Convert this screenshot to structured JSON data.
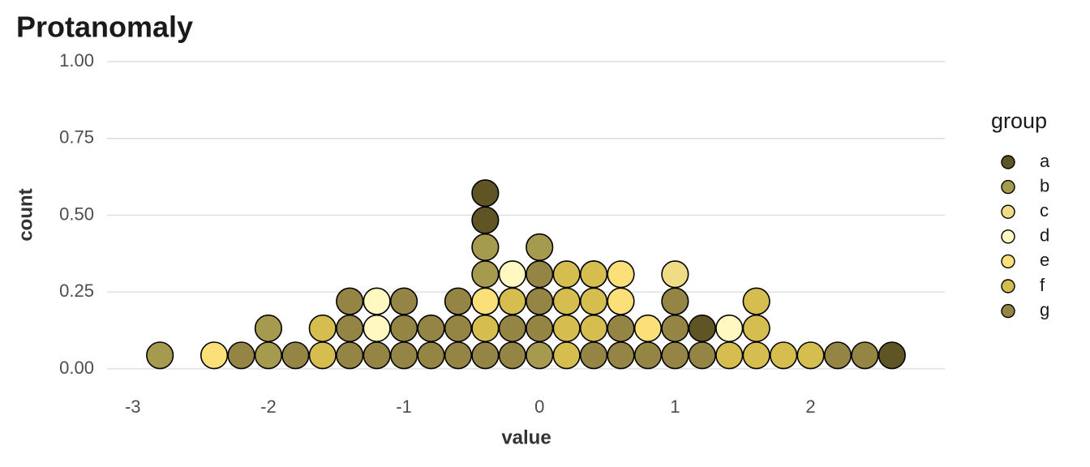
{
  "chart_data": {
    "type": "dotplot",
    "title": "Protanomaly",
    "x_label": "value",
    "y_label": "count",
    "legend_title": "group",
    "xlim": [
      -3.19,
      2.99
    ],
    "ylim": [
      -0.07,
      1.0
    ],
    "xticks": [
      -3,
      -2,
      -1,
      0,
      1,
      2
    ],
    "yticks": [
      {
        "value": 0,
        "label": "0.00"
      },
      {
        "value": 0.25,
        "label": "0.25"
      },
      {
        "value": 0.5,
        "label": "0.50"
      },
      {
        "value": 0.75,
        "label": "0.75"
      },
      {
        "value": 1,
        "label": "1.00"
      }
    ],
    "grid": true,
    "legend": "right",
    "series": [
      {
        "name": "a",
        "color": "#5f5423",
        "x": [
          -0.4,
          -0.4,
          1.2,
          2.6
        ],
        "values": [
          0.484,
          0.572,
          0.132,
          0.044
        ]
      },
      {
        "name": "b",
        "color": "#a69a4e",
        "x": [
          -2.8,
          -2.0,
          -2.0,
          -0.4,
          -0.4,
          0,
          0
        ],
        "values": [
          0.044,
          0.044,
          0.132,
          0.308,
          0.396,
          0.044,
          0.396
        ]
      },
      {
        "name": "c",
        "color": "#f0dc84",
        "x": [
          1.0
        ],
        "values": [
          0.308
        ]
      },
      {
        "name": "d",
        "color": "#fff8c0",
        "x": [
          -1.2,
          -1.2,
          -0.2,
          0.4,
          1.4
        ],
        "values": [
          0.132,
          0.22,
          0.308,
          0.308,
          0.132
        ]
      },
      {
        "name": "e",
        "color": "#fbe07a",
        "x": [
          -2.4,
          -0.4,
          0.6,
          0.6,
          0.8
        ],
        "values": [
          0.044,
          0.22,
          0.22,
          0.308,
          0.132
        ]
      },
      {
        "name": "f",
        "color": "#d6bd4f",
        "x": [
          -1.6,
          -1.6,
          -0.4,
          -0.2,
          0.2,
          0.2,
          0.2,
          0.2,
          0.4,
          0.4,
          0.4,
          1.4,
          1.6,
          1.6,
          1.6,
          1.8,
          2.0
        ],
        "values": [
          0.044,
          0.132,
          0.132,
          0.22,
          0.044,
          0.132,
          0.22,
          0.308,
          0.132,
          0.22,
          0.308,
          0.044,
          0.044,
          0.132,
          0.22,
          0.044,
          0.044
        ]
      },
      {
        "name": "g",
        "color": "#948545",
        "x": [
          -2.2,
          -1.8,
          -1.4,
          -1.4,
          -1.4,
          -1.2,
          -1.0,
          -1.0,
          -1.0,
          -0.8,
          -0.8,
          -0.6,
          -0.6,
          -0.6,
          -0.4,
          -0.2,
          -0.2,
          0,
          0,
          0,
          0.4,
          0.6,
          0.6,
          0.8,
          1.0,
          1.0,
          1.0,
          1.2,
          2.2,
          2.4
        ],
        "values": [
          0.044,
          0.044,
          0.044,
          0.132,
          0.22,
          0.044,
          0.044,
          0.132,
          0.22,
          0.044,
          0.132,
          0.044,
          0.132,
          0.22,
          0.044,
          0.044,
          0.132,
          0.132,
          0.22,
          0.308,
          0.044,
          0.044,
          0.132,
          0.044,
          0.044,
          0.132,
          0.22,
          0.044,
          0.044,
          0.044
        ]
      }
    ]
  }
}
